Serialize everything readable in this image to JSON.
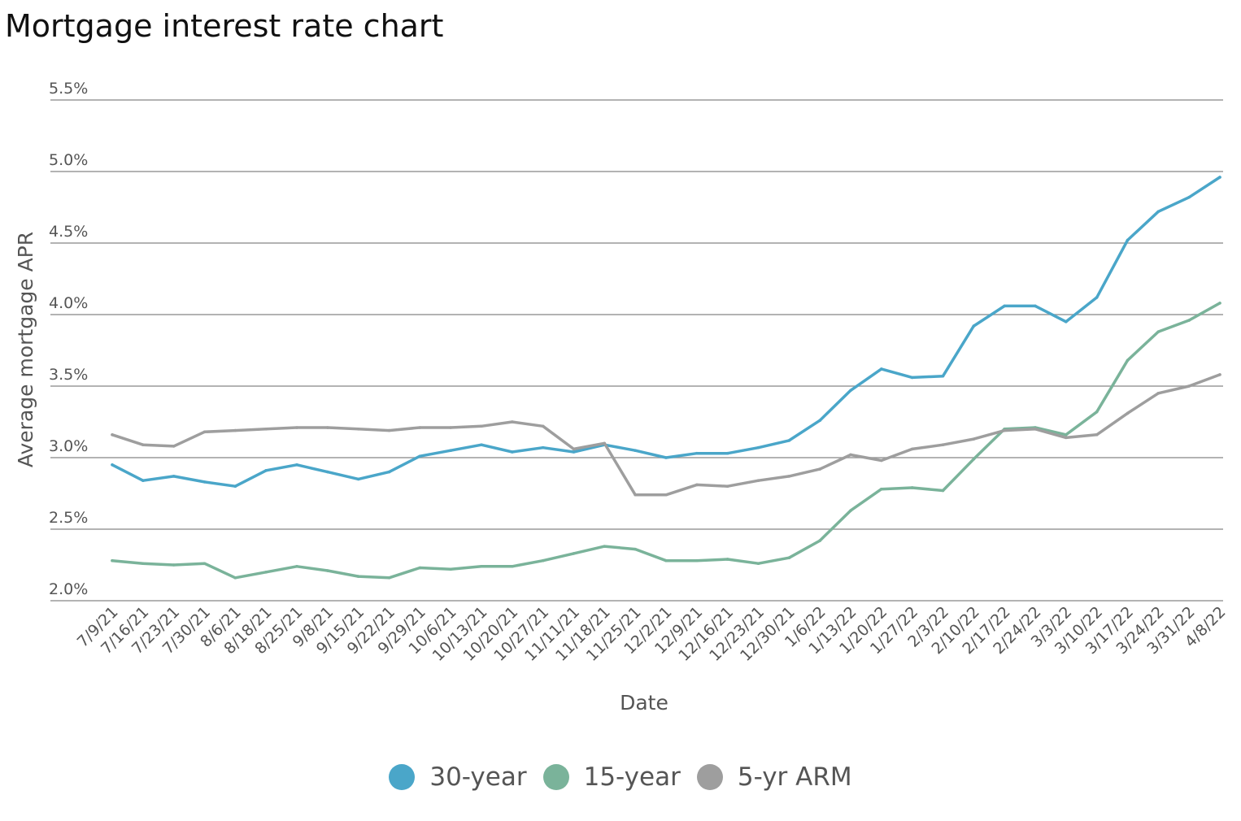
{
  "chart_data": {
    "type": "line",
    "title": "Mortgage interest rate chart",
    "xlabel": "Date",
    "ylabel": "Average mortgage APR",
    "ylim": [
      2.0,
      5.5
    ],
    "yticks": [
      "2.0%",
      "2.5%",
      "3.0%",
      "3.5%",
      "4.0%",
      "4.5%",
      "5.0%",
      "5.5%"
    ],
    "ytick_values": [
      2.0,
      2.5,
      3.0,
      3.5,
      4.0,
      4.5,
      5.0,
      5.5
    ],
    "grid": true,
    "legend_position": "bottom-center",
    "categories": [
      "7/9/21",
      "7/16/21",
      "7/23/21",
      "7/30/21",
      "8/6/21",
      "8/18/21",
      "8/25/21",
      "9/8/21",
      "9/15/21",
      "9/22/21",
      "9/29/21",
      "10/6/21",
      "10/13/21",
      "10/20/21",
      "10/27/21",
      "11/11/21",
      "11/18/21",
      "11/25/21",
      "12/2/21",
      "12/9/21",
      "12/16/21",
      "12/23/21",
      "12/30/21",
      "1/6/22",
      "1/13/22",
      "1/20/22",
      "1/27/22",
      "2/3/22",
      "2/10/22",
      "2/17/22",
      "2/24/22",
      "3/3/22",
      "3/10/22",
      "3/17/22",
      "3/24/22",
      "3/31/22",
      "4/8/22"
    ],
    "series": [
      {
        "name": "30-year",
        "color": "#4aa6c9",
        "values": [
          2.95,
          2.84,
          2.87,
          2.83,
          2.8,
          2.91,
          2.95,
          2.9,
          2.85,
          2.9,
          3.01,
          3.05,
          3.09,
          3.04,
          3.07,
          3.04,
          3.09,
          3.05,
          3.0,
          3.03,
          3.03,
          3.07,
          3.12,
          3.26,
          3.47,
          3.62,
          3.56,
          3.57,
          3.92,
          4.06,
          4.06,
          3.95,
          4.12,
          4.52,
          4.72,
          4.82,
          4.96
        ]
      },
      {
        "name": "15-year",
        "color": "#7ab39a",
        "values": [
          2.28,
          2.26,
          2.25,
          2.26,
          2.16,
          2.2,
          2.24,
          2.21,
          2.17,
          2.16,
          2.23,
          2.22,
          2.24,
          2.24,
          2.28,
          2.33,
          2.38,
          2.36,
          2.28,
          2.28,
          2.29,
          2.26,
          2.3,
          2.42,
          2.63,
          2.78,
          2.79,
          2.77,
          2.99,
          3.2,
          3.21,
          3.16,
          3.32,
          3.68,
          3.88,
          3.96,
          4.08
        ]
      },
      {
        "name": "5-yr ARM",
        "color": "#9e9e9e",
        "values": [
          3.16,
          3.09,
          3.08,
          3.18,
          3.19,
          3.2,
          3.21,
          3.21,
          3.2,
          3.19,
          3.21,
          3.21,
          3.22,
          3.25,
          3.22,
          3.06,
          3.1,
          2.74,
          2.74,
          2.81,
          2.8,
          2.84,
          2.87,
          2.92,
          3.02,
          2.98,
          3.06,
          3.09,
          3.13,
          3.19,
          3.2,
          3.14,
          3.16,
          3.31,
          3.45,
          3.5,
          3.58
        ]
      }
    ]
  }
}
